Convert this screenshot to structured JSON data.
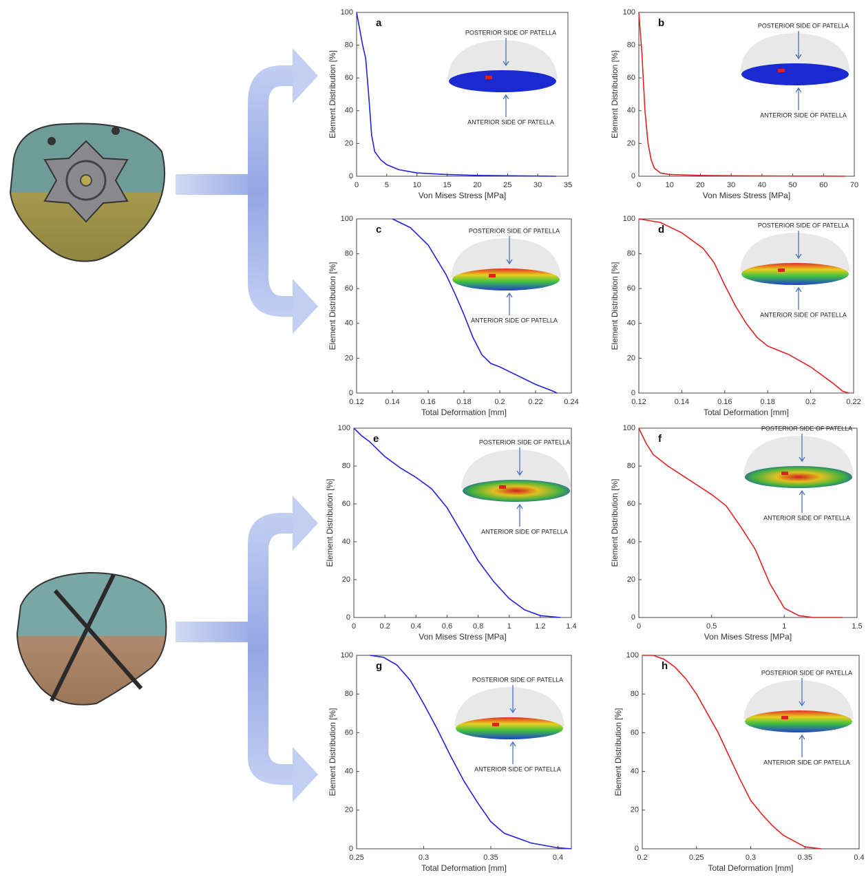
{
  "chart_data": [
    {
      "type": "line",
      "panel_label": "a",
      "annotations": [
        "POSTERIOR SIDE OF PATELLA",
        "ANTERIOR SIDE OF PATELLA"
      ],
      "x_label": "Von Mises Stress [MPa]",
      "y_label": "Element Distribution [%]",
      "color": "#2020e0",
      "x": [
        0,
        0.5,
        1,
        1.5,
        2,
        2.5,
        3,
        4,
        5,
        7,
        10,
        15,
        20,
        25,
        33
      ],
      "values": [
        100,
        90,
        80,
        72,
        50,
        25,
        15,
        10,
        7,
        4,
        2,
        1,
        0.5,
        0.3,
        0
      ],
      "xlim": [
        0,
        35
      ],
      "xticks": [
        0,
        5,
        10,
        15,
        20,
        25,
        30,
        35
      ],
      "ylim": [
        0,
        100
      ],
      "yticks": [
        0,
        20,
        40,
        60,
        80,
        100
      ]
    },
    {
      "type": "line",
      "panel_label": "b",
      "annotations": [
        "POSTERIOR SIDE OF PATELLA",
        "ANTERIOR SIDE OF PATELLA"
      ],
      "x_label": "Von Mises Stress [MPa]",
      "y_label": "Element Distribution [%]",
      "color": "#e02020",
      "x": [
        0,
        1,
        2,
        3,
        4,
        5,
        7,
        10,
        20,
        30,
        40,
        50,
        60,
        67
      ],
      "values": [
        100,
        75,
        40,
        20,
        10,
        5,
        2,
        1,
        0.5,
        0.3,
        0.2,
        0.1,
        0.1,
        0
      ],
      "xlim": [
        0,
        70
      ],
      "xticks": [
        0,
        10,
        20,
        30,
        40,
        50,
        60,
        70
      ],
      "ylim": [
        0,
        100
      ],
      "yticks": [
        0,
        20,
        40,
        60,
        80,
        100
      ]
    },
    {
      "type": "line",
      "panel_label": "c",
      "annotations": [
        "POSTERIOR SIDE OF PATELLA",
        "ANTERIOR SIDE OF PATELLA"
      ],
      "x_label": "Total Deformation [mm]",
      "y_label": "Element Distribution [%]",
      "color": "#2020e0",
      "x": [
        0.14,
        0.15,
        0.16,
        0.17,
        0.175,
        0.18,
        0.185,
        0.19,
        0.195,
        0.2,
        0.21,
        0.22,
        0.23,
        0.232
      ],
      "values": [
        100,
        95,
        85,
        68,
        57,
        45,
        32,
        22,
        17,
        15,
        10,
        5,
        1,
        0
      ],
      "xlim": [
        0.12,
        0.24
      ],
      "xticks": [
        0.12,
        0.14,
        0.16,
        0.18,
        0.2,
        0.22,
        0.24
      ],
      "ylim": [
        0,
        100
      ],
      "yticks": [
        0,
        20,
        40,
        60,
        80,
        100
      ]
    },
    {
      "type": "line",
      "panel_label": "d",
      "annotations": [
        "POSTERIOR SIDE OF PATELLA",
        "ANTERIOR SIDE OF PATELLA"
      ],
      "x_label": "Total Deformation [mm]",
      "y_label": "Element Distribution [%]",
      "color": "#e02020",
      "x": [
        0.12,
        0.13,
        0.14,
        0.15,
        0.155,
        0.16,
        0.165,
        0.17,
        0.175,
        0.18,
        0.19,
        0.2,
        0.21,
        0.215,
        0.218
      ],
      "values": [
        100,
        98,
        92,
        83,
        75,
        62,
        50,
        40,
        32,
        27,
        22,
        15,
        6,
        1,
        0
      ],
      "xlim": [
        0.12,
        0.22
      ],
      "xticks": [
        0.12,
        0.14,
        0.16,
        0.18,
        0.2,
        0.22
      ],
      "ylim": [
        0,
        100
      ],
      "yticks": [
        0,
        20,
        40,
        60,
        80,
        100
      ]
    },
    {
      "type": "line",
      "panel_label": "e",
      "annotations": [
        "POSTERIOR SIDE OF PATELLA",
        "ANTERIOR SIDE OF PATELLA"
      ],
      "x_label": "Von Mises Stress [MPa]",
      "y_label": "Element Distribution [%]",
      "color": "#2020e0",
      "x": [
        0,
        0.05,
        0.1,
        0.2,
        0.3,
        0.4,
        0.5,
        0.6,
        0.7,
        0.8,
        0.9,
        1,
        1.1,
        1.2,
        1.33
      ],
      "values": [
        100,
        96,
        93,
        85,
        79,
        74,
        68,
        58,
        44,
        30,
        19,
        10,
        4,
        1,
        0
      ],
      "xlim": [
        0,
        1.4
      ],
      "xticks": [
        0,
        0.2,
        0.4,
        0.6,
        0.8,
        1,
        1.2,
        1.4
      ],
      "ylim": [
        0,
        100
      ],
      "yticks": [
        0,
        20,
        40,
        60,
        80,
        100
      ]
    },
    {
      "type": "line",
      "panel_label": "f",
      "annotations": [
        "POSTERIOR SIDE OF PATELLA",
        "ANTERIOR SIDE OF PATELLA"
      ],
      "x_label": "Von Mises Stress [MPa]",
      "y_label": "Element Distribution [%]",
      "color": "#e02020",
      "x": [
        0,
        0.05,
        0.1,
        0.2,
        0.3,
        0.4,
        0.5,
        0.6,
        0.7,
        0.8,
        0.9,
        1,
        1.1,
        1.2,
        1.4
      ],
      "values": [
        100,
        92,
        86,
        80,
        75,
        70,
        65,
        59,
        48,
        36,
        18,
        5,
        1,
        0,
        0
      ],
      "xlim": [
        0,
        1.5
      ],
      "xticks": [
        0,
        0.5,
        1,
        1.5
      ],
      "ylim": [
        0,
        100
      ],
      "yticks": [
        0,
        20,
        40,
        60,
        80,
        100
      ]
    },
    {
      "type": "line",
      "panel_label": "g",
      "annotations": [
        "POSTERIOR SIDE OF PATELLA",
        "ANTERIOR SIDE OF PATELLA"
      ],
      "x_label": "Total Deformation [mm]",
      "y_label": "Element Distribution [%]",
      "color": "#2020e0",
      "x": [
        0.26,
        0.27,
        0.28,
        0.29,
        0.3,
        0.31,
        0.32,
        0.33,
        0.34,
        0.35,
        0.36,
        0.38,
        0.4,
        0.41
      ],
      "values": [
        100,
        99,
        95,
        87,
        75,
        62,
        48,
        35,
        24,
        14,
        8,
        3,
        0.5,
        0
      ],
      "xlim": [
        0.25,
        0.41
      ],
      "xticks": [
        0.25,
        0.3,
        0.35,
        0.4
      ],
      "ylim": [
        0,
        100
      ],
      "yticks": [
        0,
        20,
        40,
        60,
        80,
        100
      ]
    },
    {
      "type": "line",
      "panel_label": "h",
      "annotations": [
        "POSTERIOR SIDE OF PATELLA",
        "ANTERIOR SIDE OF PATELLA"
      ],
      "x_label": "Total Deformation [mm]",
      "y_label": "Element Distribution [%]",
      "color": "#e02020",
      "x": [
        0.2,
        0.21,
        0.22,
        0.23,
        0.24,
        0.25,
        0.26,
        0.27,
        0.28,
        0.29,
        0.3,
        0.31,
        0.32,
        0.33,
        0.34,
        0.35,
        0.365
      ],
      "values": [
        100,
        100,
        98,
        94,
        88,
        80,
        70,
        60,
        48,
        36,
        25,
        18,
        12,
        7,
        4,
        1,
        0
      ],
      "xlim": [
        0.2,
        0.4
      ],
      "xticks": [
        0.2,
        0.25,
        0.3,
        0.35,
        0.4
      ],
      "ylim": [
        0,
        100
      ],
      "yticks": [
        0,
        20,
        40,
        60,
        80,
        100
      ]
    }
  ]
}
